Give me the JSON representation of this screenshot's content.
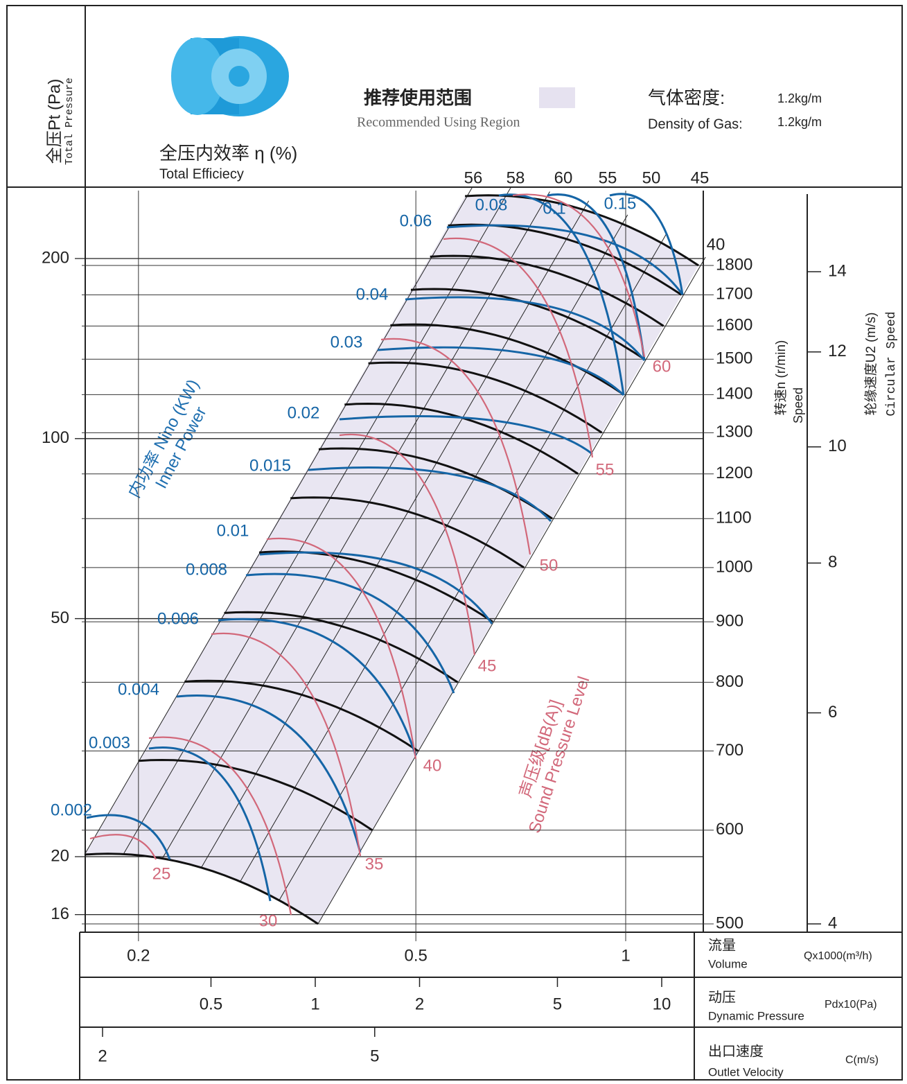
{
  "header": {
    "pressure_cn": "全压Pt (Pa)",
    "pressure_en": "Total Pressure",
    "efficiency_cn": "全压内效率 η (%)",
    "efficiency_en": "Total Efficiecy",
    "recommended_cn": "推荐使用范围",
    "recommended_en": "Recommended Using Region",
    "density_cn": "气体密度:",
    "density_en": "Density of Gas:",
    "density_value_cn": "1.2kg/m",
    "density_value_en": "1.2kg/m"
  },
  "chart_data": {
    "type": "fan-performance",
    "pressure": {
      "scale": "log",
      "ticks": [
        16,
        20,
        50,
        100,
        200
      ]
    },
    "speed": {
      "title_cn": "转速n (r/min)",
      "title_en": "Speed",
      "ticks": [
        500,
        600,
        700,
        800,
        900,
        1000,
        1100,
        1200,
        1300,
        1400,
        1500,
        1600,
        1700,
        1800
      ]
    },
    "circular_speed": {
      "title_cn": "轮缘速度U2 (m/s)",
      "title_en": "Circular Speed",
      "ticks": [
        4,
        6,
        8,
        10,
        12,
        14
      ]
    },
    "volume": {
      "title_cn": "流量",
      "title_en": "Volume",
      "unit": "Qx1000(m³/h)",
      "ticks": [
        0.2,
        0.5,
        1
      ]
    },
    "dynamic_pressure": {
      "title_cn": "动压",
      "title_en": "Dynamic Pressure",
      "unit": "Pdx10(Pa)",
      "ticks": [
        0.5,
        1,
        2,
        5,
        10
      ]
    },
    "outlet_velocity": {
      "title_cn": "出口速度",
      "title_en": "Outlet Velocity",
      "unit": "C(m/s)",
      "ticks": [
        2,
        5
      ]
    },
    "efficiency": {
      "values": [
        56,
        58,
        60,
        55,
        50,
        45,
        40
      ]
    },
    "power": {
      "title_cn": "内功率 Nino (KW)",
      "title_en": "Inner Power",
      "color": "#1565a6",
      "values": [
        0.002,
        0.003,
        0.004,
        0.006,
        0.008,
        0.01,
        0.015,
        0.02,
        0.03,
        0.04,
        0.06,
        0.08,
        0.1,
        0.15
      ]
    },
    "sound": {
      "title_cn": "声压级[dB(A)]",
      "title_en": "Sound Pressure Level",
      "color": "#d2687a",
      "values": [
        25,
        30,
        35,
        40,
        45,
        50,
        55,
        60
      ]
    }
  }
}
